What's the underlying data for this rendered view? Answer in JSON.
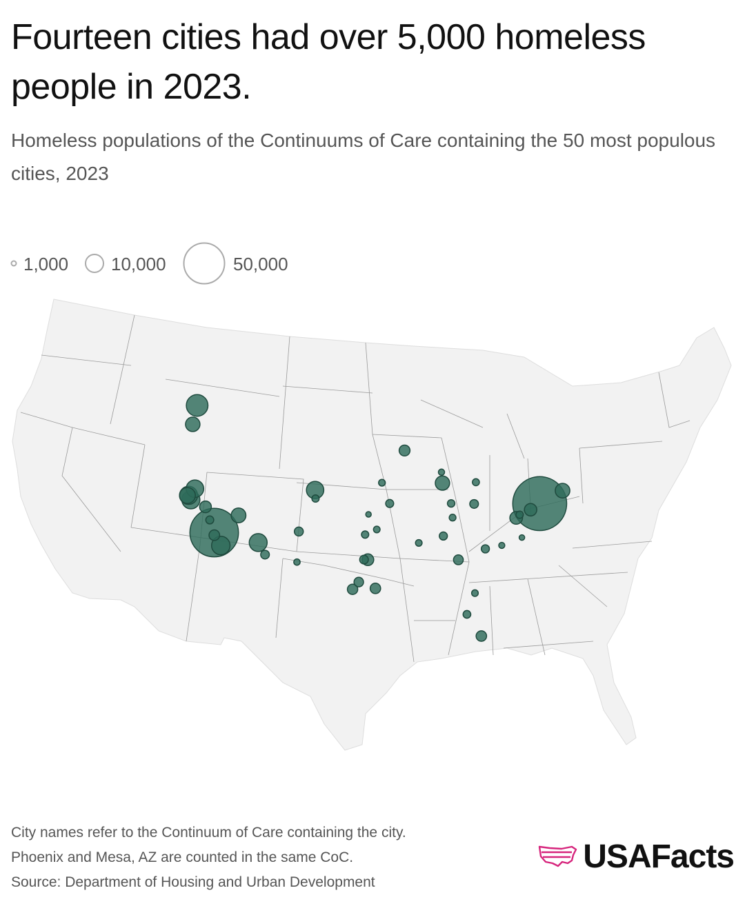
{
  "title": "Fourteen cities had over 5,000 homeless people in 2023.",
  "subtitle": "Homeless populations of the Continuums of Care containing the 50 most populous cities, 2023",
  "legend": {
    "items": [
      "1,000",
      "10,000",
      "50,000"
    ]
  },
  "footnotes": [
    "City names refer to the Continuum of Care containing the city.",
    "Phoenix and Mesa, AZ are counted in the same CoC.",
    "Source: Department of Housing and Urban Development"
  ],
  "brand": {
    "name": "USAFacts"
  },
  "colors": {
    "bubble": "#2e6b5a",
    "land": "#f2f2f2",
    "border": "#999999",
    "brand_accent": "#d6247c"
  },
  "map_data": {
    "type": "bubble-map",
    "region": "contiguous United States",
    "value_unit": "homeless people",
    "legend_values": [
      1000,
      10000,
      50000
    ],
    "points": [
      {
        "lat": 47.61,
        "lon": -122.33,
        "value": 14150
      },
      {
        "lat": 45.52,
        "lon": -122.68,
        "value": 6300
      },
      {
        "lat": 37.77,
        "lon": -122.42,
        "value": 7600
      },
      {
        "lat": 38.58,
        "lon": -121.49,
        "value": 9300
      },
      {
        "lat": 37.34,
        "lon": -121.89,
        "value": 9900
      },
      {
        "lat": 37.8,
        "lon": -122.27,
        "value": 9800
      },
      {
        "lat": 36.74,
        "lon": -119.79,
        "value": 4200
      },
      {
        "lat": 35.37,
        "lon": -119.02,
        "value": 1950
      },
      {
        "lat": 34.05,
        "lon": -118.24,
        "value": 71300
      },
      {
        "lat": 33.77,
        "lon": -118.19,
        "value": 3450
      },
      {
        "lat": 32.72,
        "lon": -117.16,
        "value": 10250
      },
      {
        "lat": 36.17,
        "lon": -115.14,
        "value": 6550
      },
      {
        "lat": 33.45,
        "lon": -112.07,
        "value": 9650
      },
      {
        "lat": 32.22,
        "lon": -110.97,
        "value": 2300
      },
      {
        "lat": 35.08,
        "lon": -106.65,
        "value": 2400
      },
      {
        "lat": 31.76,
        "lon": -106.49,
        "value": 1200
      },
      {
        "lat": 39.74,
        "lon": -104.99,
        "value": 9100
      },
      {
        "lat": 38.83,
        "lon": -104.82,
        "value": 1600
      },
      {
        "lat": 41.26,
        "lon": -95.93,
        "value": 1400
      },
      {
        "lat": 39.1,
        "lon": -94.58,
        "value": 1950
      },
      {
        "lat": 37.69,
        "lon": -97.34,
        "value": 900
      },
      {
        "lat": 36.15,
        "lon": -95.99,
        "value": 1300
      },
      {
        "lat": 35.47,
        "lon": -97.52,
        "value": 1600
      },
      {
        "lat": 32.78,
        "lon": -96.8,
        "value": 4200
      },
      {
        "lat": 32.75,
        "lon": -97.33,
        "value": 2300
      },
      {
        "lat": 30.27,
        "lon": -97.74,
        "value": 2700
      },
      {
        "lat": 29.42,
        "lon": -98.49,
        "value": 3200
      },
      {
        "lat": 29.76,
        "lon": -95.37,
        "value": 3300
      },
      {
        "lat": 44.98,
        "lon": -93.27,
        "value": 3550
      },
      {
        "lat": 43.04,
        "lon": -87.91,
        "value": 1150
      },
      {
        "lat": 41.88,
        "lon": -87.63,
        "value": 6200
      },
      {
        "lat": 39.77,
        "lon": -86.16,
        "value": 1650
      },
      {
        "lat": 42.33,
        "lon": -83.05,
        "value": 1500
      },
      {
        "lat": 39.96,
        "lon": -83.0,
        "value": 2300
      },
      {
        "lat": 38.25,
        "lon": -85.76,
        "value": 1400
      },
      {
        "lat": 36.16,
        "lon": -86.78,
        "value": 2000
      },
      {
        "lat": 35.15,
        "lon": -90.05,
        "value": 1300
      },
      {
        "lat": 33.75,
        "lon": -84.39,
        "value": 2900
      },
      {
        "lat": 35.23,
        "lon": -80.84,
        "value": 2000
      },
      {
        "lat": 35.78,
        "lon": -78.64,
        "value": 1100
      },
      {
        "lat": 36.85,
        "lon": -75.98,
        "value": 600
      },
      {
        "lat": 30.33,
        "lon": -81.66,
        "value": 1300
      },
      {
        "lat": 27.95,
        "lon": -82.46,
        "value": 1800
      },
      {
        "lat": 25.76,
        "lon": -80.19,
        "value": 3300
      },
      {
        "lat": 38.91,
        "lon": -77.04,
        "value": 4900
      },
      {
        "lat": 39.29,
        "lon": -76.61,
        "value": 1600
      },
      {
        "lat": 39.95,
        "lon": -75.17,
        "value": 4700
      },
      {
        "lat": 40.71,
        "lon": -74.01,
        "value": 88000
      },
      {
        "lat": 42.36,
        "lon": -71.06,
        "value": 6400
      }
    ]
  }
}
